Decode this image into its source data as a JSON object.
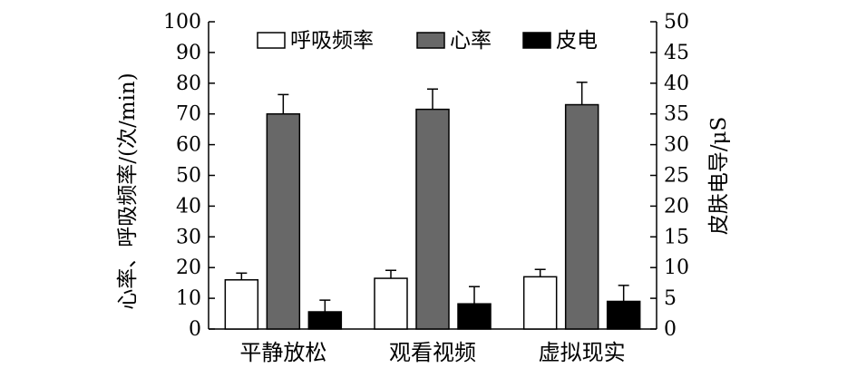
{
  "chart_data": {
    "type": "bar",
    "categories": [
      "平静放松",
      "观看视频",
      "虚拟现实"
    ],
    "series": [
      {
        "name": "呼吸频率",
        "axis": "left",
        "color": "#ffffff",
        "values": [
          16,
          16.5,
          17
        ],
        "errors": [
          2.2,
          2.6,
          2.4
        ]
      },
      {
        "name": "心率",
        "axis": "left",
        "color": "#686868",
        "values": [
          70,
          71.5,
          73
        ],
        "errors": [
          6.3,
          6.6,
          7.3
        ]
      },
      {
        "name": "皮电",
        "axis": "right",
        "color": "#000000",
        "values": [
          2.8,
          4.1,
          4.5
        ],
        "errors": [
          1.9,
          2.8,
          2.6
        ]
      }
    ],
    "ylabel": "心率、呼吸频率/(次/min)",
    "ylabel_right": "皮肤电导/μS",
    "ylim": [
      0,
      100
    ],
    "ylim_right": [
      0,
      50
    ],
    "yticks": [
      "0",
      "10",
      "20",
      "30",
      "40",
      "50",
      "60",
      "70",
      "80",
      "90",
      "100"
    ],
    "yticks_right": [
      "0",
      "5",
      "10",
      "15",
      "20",
      "25",
      "30",
      "35",
      "40",
      "45",
      "50"
    ],
    "legend_position": "top",
    "grid": false
  }
}
